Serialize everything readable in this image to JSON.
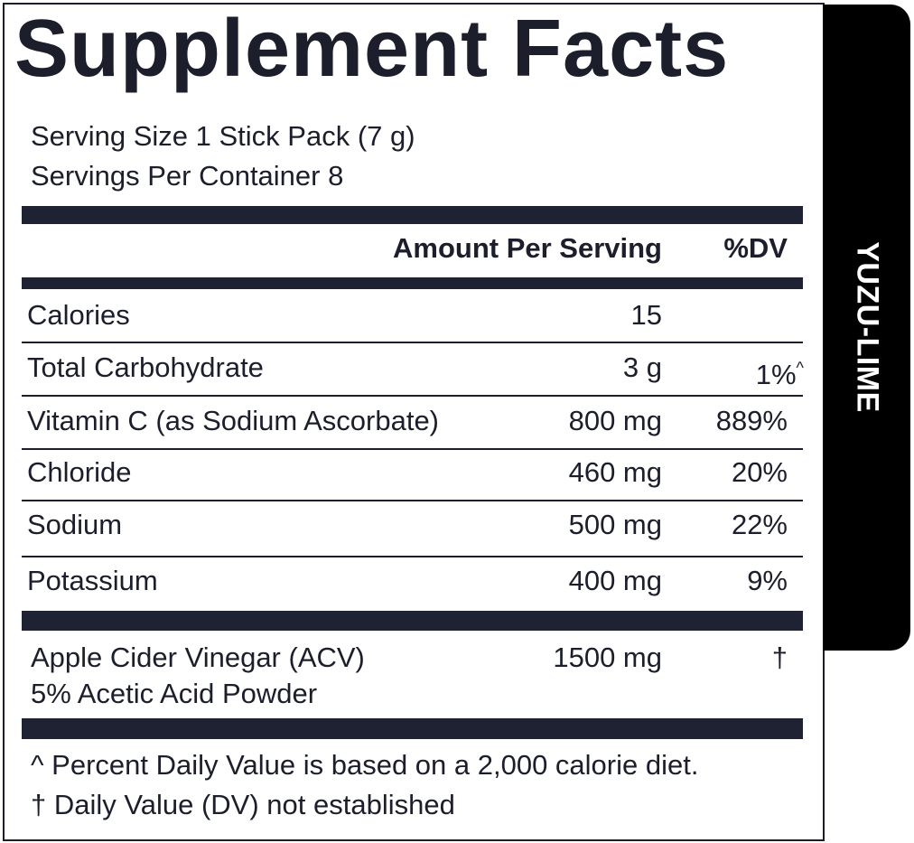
{
  "title": "Supplement Facts",
  "flavor": "YUZU-LIME",
  "serving": [
    "Serving Size 1 Stick Pack (7 g)",
    "Servings Per Container 8"
  ],
  "header": {
    "amount": "Amount Per Serving",
    "dv": "%DV"
  },
  "rows": [
    {
      "name": "Calories",
      "amount": "15"
    },
    {
      "name": "Total Carbohydrate",
      "amount": "3 g",
      "dv": "1%",
      "dv_mark": "^"
    },
    {
      "name": "Vitamin C (as Sodium Ascorbate)",
      "amount": "800 mg",
      "dv": "889%"
    },
    {
      "name": "Chloride",
      "amount": "460 mg",
      "dv": "20%"
    },
    {
      "name": "Sodium",
      "amount": "500 mg",
      "dv": "22%"
    },
    {
      "name": "Potassium",
      "amount": "400 mg",
      "dv": "9%"
    }
  ],
  "other": {
    "name": [
      "Apple Cider Vinegar (ACV)",
      "5% Acetic Acid Powder"
    ],
    "amount": "1500 mg",
    "dv": "†"
  },
  "footnotes": [
    "^ Percent Daily Value is based on a 2,000 calorie diet.",
    "† Daily Value (DV) not established"
  ]
}
